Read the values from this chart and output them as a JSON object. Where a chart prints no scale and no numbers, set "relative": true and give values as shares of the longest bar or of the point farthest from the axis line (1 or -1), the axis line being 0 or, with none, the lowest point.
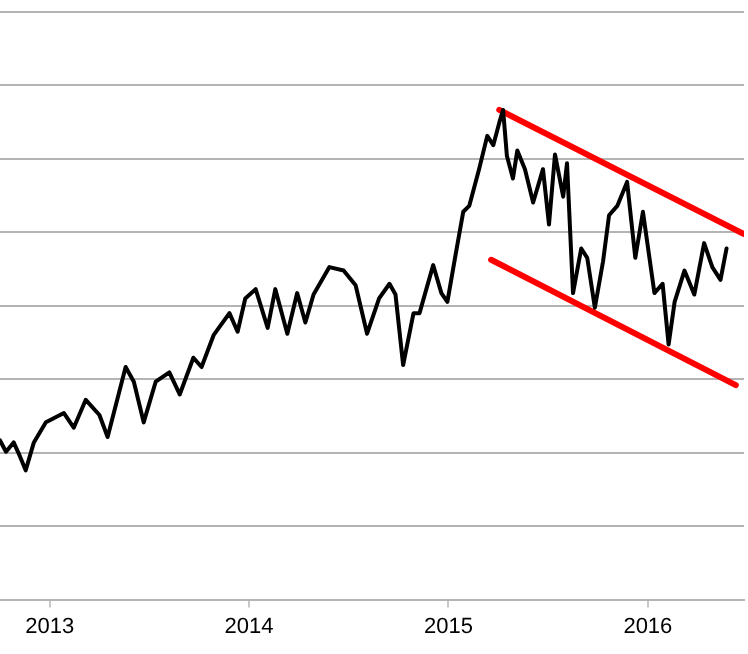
{
  "chart_data": {
    "type": "line",
    "relative": true,
    "grid": "y",
    "legend": false,
    "marker": "none",
    "line_style": "solid",
    "xlim": [
      "2012-10-02",
      "2016-06-25"
    ],
    "xticks": [
      "2013",
      "2014",
      "2015",
      "2016"
    ],
    "series": [
      {
        "color": "#000000",
        "x": [
          "2012-10-02",
          "2012-10-13",
          "2012-10-27",
          "2012-11-07",
          "2012-11-18",
          "2012-12-03",
          "2012-12-25",
          "2013-01-27",
          "2013-02-14",
          "2013-03-08",
          "2013-04-02",
          "2013-04-17",
          "2013-05-20",
          "2013-06-04",
          "2013-06-22",
          "2013-07-14",
          "2013-08-08",
          "2013-08-27",
          "2013-09-21",
          "2013-10-06",
          "2013-10-28",
          "2013-11-26",
          "2013-12-11",
          "2013-12-25",
          "2014-01-13",
          "2014-02-04",
          "2014-02-18",
          "2014-03-12",
          "2014-03-30",
          "2014-04-14",
          "2014-04-29",
          "2014-05-28",
          "2014-06-23",
          "2014-07-15",
          "2014-08-05",
          "2014-08-27",
          "2014-09-15",
          "2014-09-26",
          "2014-10-10",
          "2014-10-29",
          "2014-11-09",
          "2014-12-04",
          "2014-12-19",
          "2014-12-30",
          "2015-01-13",
          "2015-01-28",
          "2015-02-08",
          "2015-02-26",
          "2015-03-13",
          "2015-03-24",
          "2015-04-04",
          "2015-04-11",
          "2015-04-18",
          "2015-04-29",
          "2015-05-07",
          "2015-05-21",
          "2015-06-05",
          "2015-06-23",
          "2015-07-04",
          "2015-07-15",
          "2015-07-30",
          "2015-08-06",
          "2015-08-17",
          "2015-09-01",
          "2015-09-12",
          "2015-09-26",
          "2015-10-11",
          "2015-10-22",
          "2015-11-06",
          "2015-11-24",
          "2015-12-09",
          "2015-12-23",
          "2016-01-13",
          "2016-01-28",
          "2016-02-08",
          "2016-02-19",
          "2016-03-08",
          "2016-03-26",
          "2016-04-13",
          "2016-04-28",
          "2016-05-13",
          "2016-05-24"
        ],
        "values": [
          0.325,
          0.302,
          0.321,
          0.294,
          0.264,
          0.321,
          0.362,
          0.381,
          0.351,
          0.408,
          0.377,
          0.332,
          0.475,
          0.445,
          0.362,
          0.445,
          0.464,
          0.419,
          0.494,
          0.475,
          0.54,
          0.585,
          0.547,
          0.615,
          0.634,
          0.555,
          0.634,
          0.543,
          0.626,
          0.566,
          0.623,
          0.679,
          0.672,
          0.642,
          0.543,
          0.615,
          0.645,
          0.623,
          0.479,
          0.585,
          0.585,
          0.683,
          0.626,
          0.608,
          0.698,
          0.792,
          0.804,
          0.879,
          0.947,
          0.928,
          0.974,
          1.0,
          0.906,
          0.86,
          0.917,
          0.879,
          0.811,
          0.879,
          0.766,
          0.909,
          0.823,
          0.891,
          0.626,
          0.717,
          0.698,
          0.596,
          0.691,
          0.785,
          0.804,
          0.853,
          0.698,
          0.792,
          0.626,
          0.645,
          0.521,
          0.608,
          0.672,
          0.623,
          0.728,
          0.679,
          0.653,
          0.717
        ]
      },
      {
        "type": "line",
        "color": "#ff0000",
        "x": [
          "2015-04-04",
          "2016-06-24"
        ],
        "values": [
          1.0,
          0.747
        ]
      },
      {
        "type": "line",
        "color": "#ff0000",
        "x": [
          "2015-03-20",
          "2016-06-10"
        ],
        "values": [
          0.694,
          0.438
        ]
      }
    ]
  }
}
